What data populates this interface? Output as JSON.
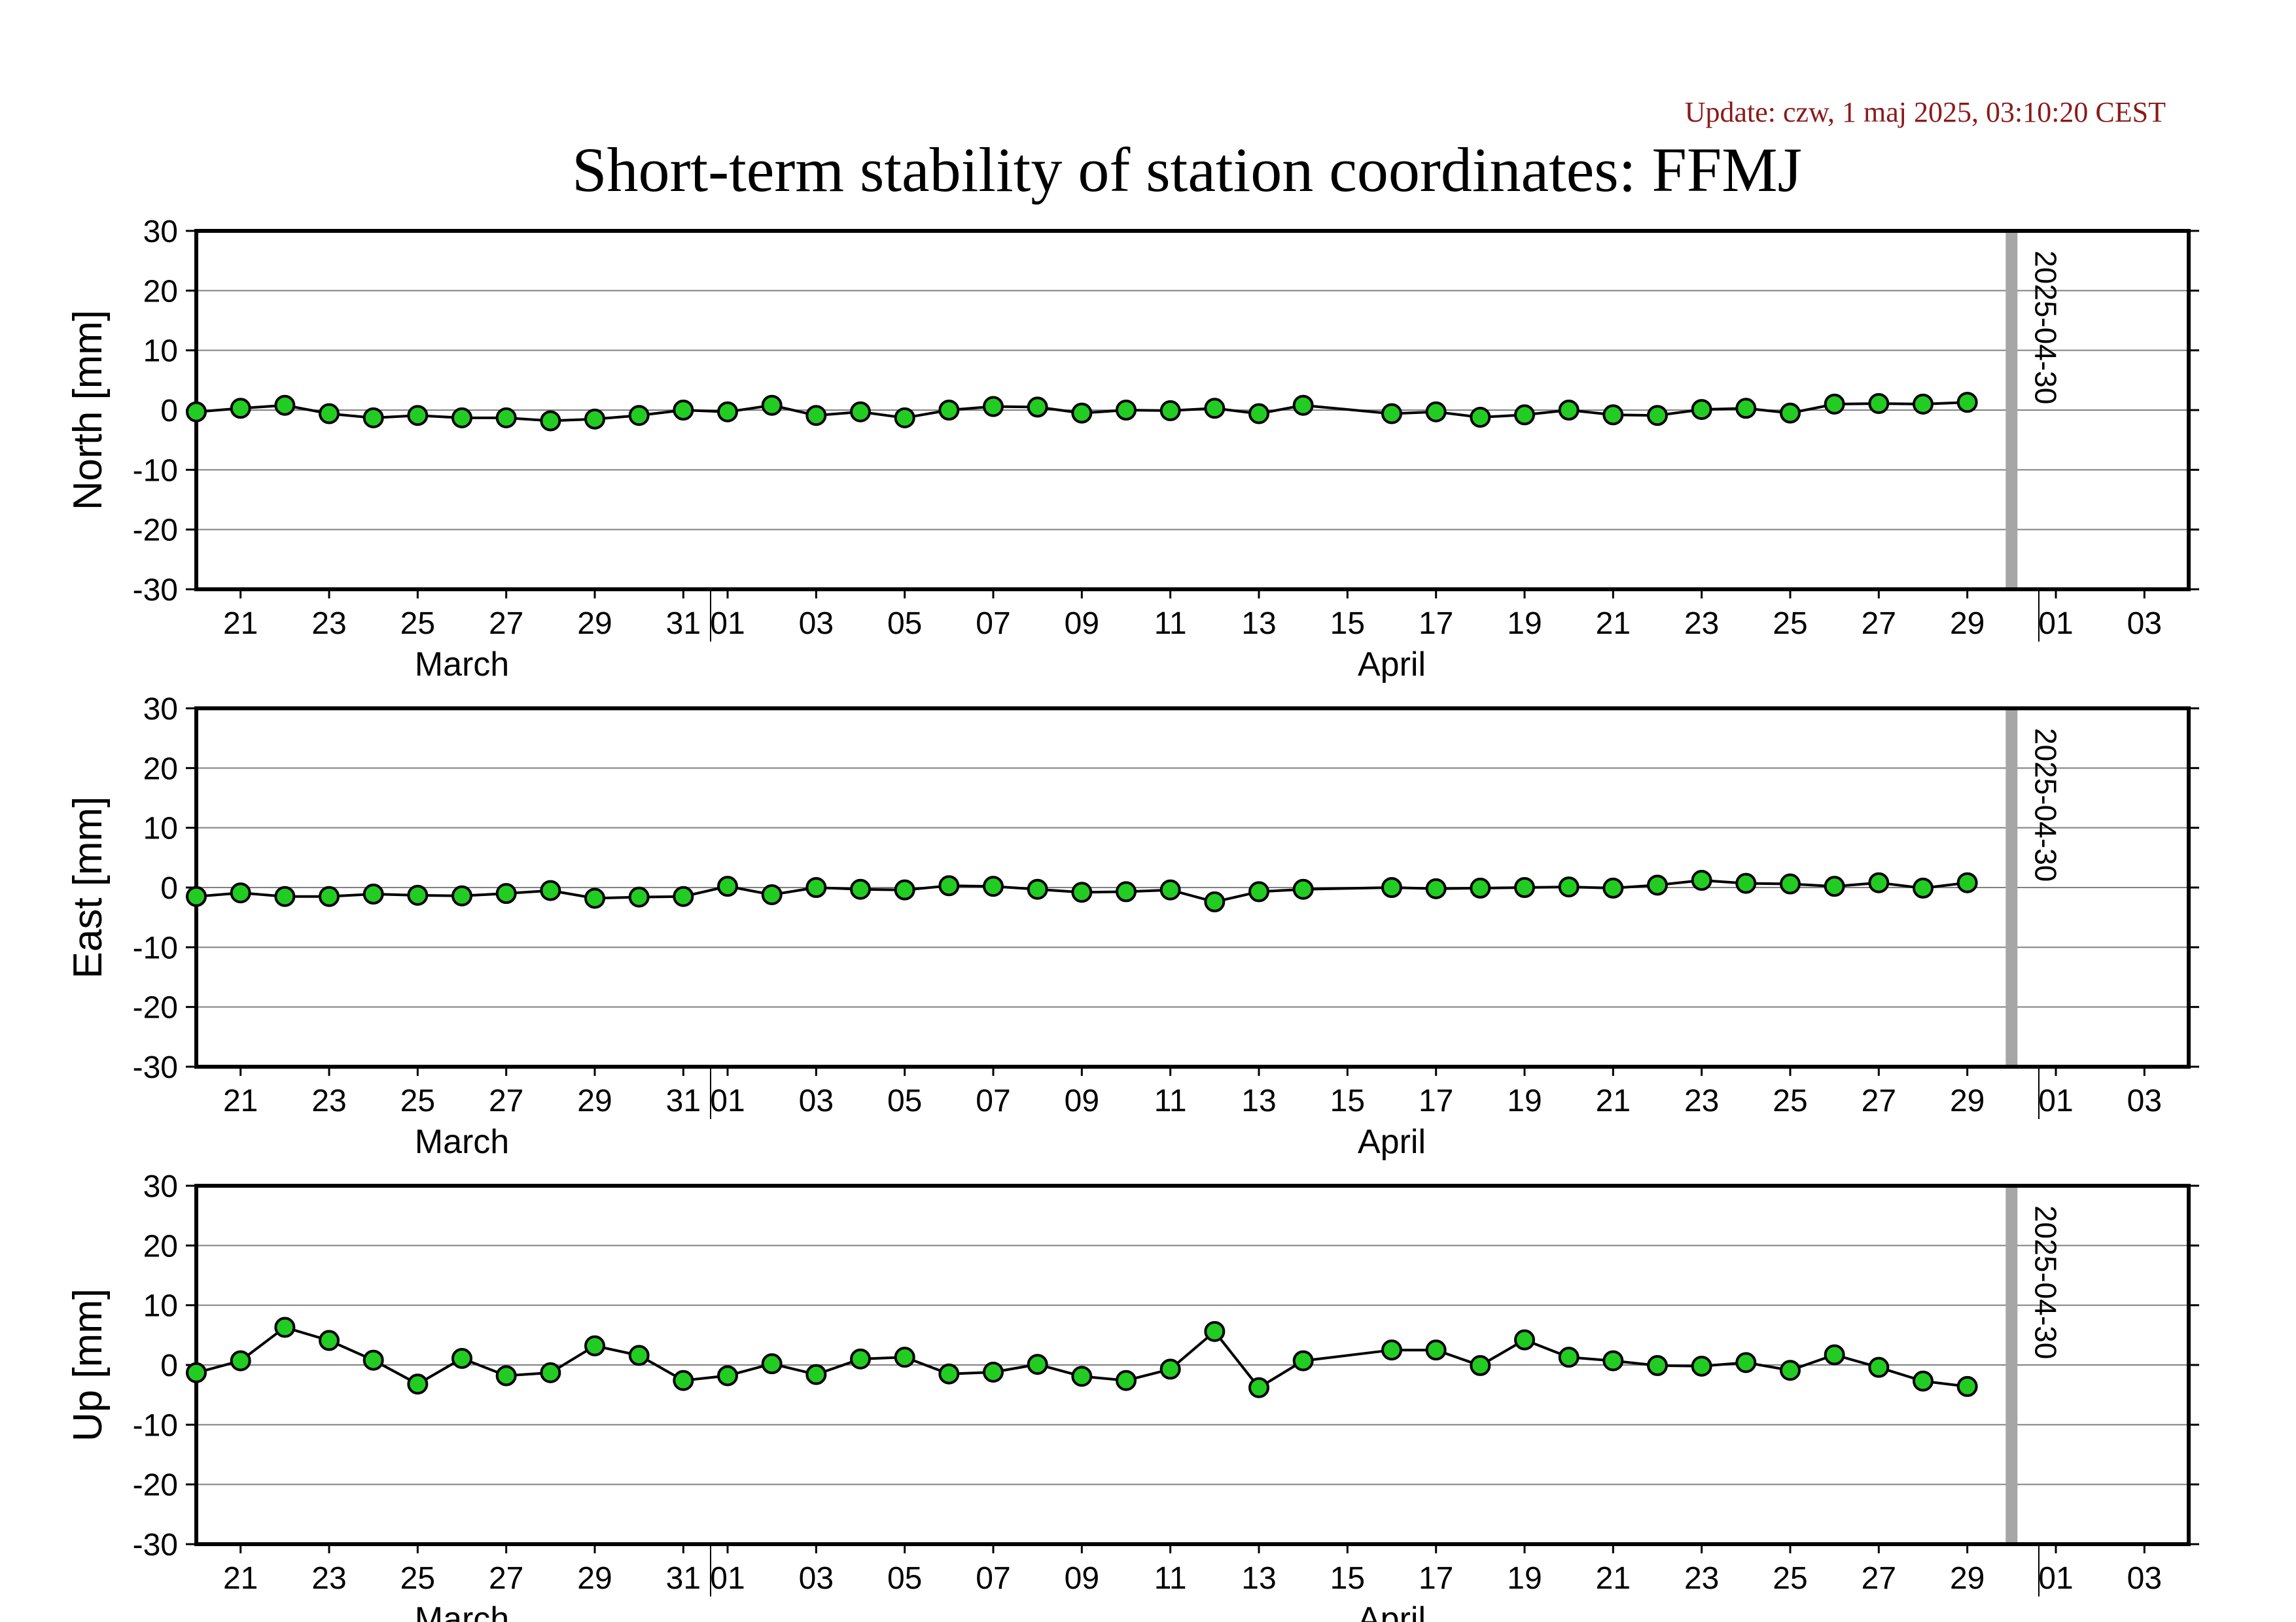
{
  "header": {
    "update": "Update: czw, 1 maj 2025, 03:10:20 CEST",
    "title": "Short-term stability of station coordinates: FFMJ"
  },
  "colors": {
    "update_text": "#8b1a1a",
    "point_fill": "#22cc22",
    "grid": "#808080",
    "marker_band": "#a6a6a6"
  },
  "chart_data": [
    {
      "type": "line",
      "ylabel": "North [mm]",
      "ylim": [
        -30,
        30
      ],
      "yticks": [
        30,
        20,
        10,
        0,
        -10,
        -20,
        -30
      ],
      "marker_label": "2025-04-30",
      "grid": true,
      "x": [
        "2025-03-20",
        "2025-03-21",
        "2025-03-22",
        "2025-03-23",
        "2025-03-24",
        "2025-03-25",
        "2025-03-26",
        "2025-03-27",
        "2025-03-28",
        "2025-03-29",
        "2025-03-30",
        "2025-03-31",
        "2025-04-01",
        "2025-04-02",
        "2025-04-03",
        "2025-04-04",
        "2025-04-05",
        "2025-04-06",
        "2025-04-07",
        "2025-04-08",
        "2025-04-09",
        "2025-04-10",
        "2025-04-11",
        "2025-04-12",
        "2025-04-13",
        "2025-04-14",
        "2025-04-16",
        "2025-04-17",
        "2025-04-18",
        "2025-04-19",
        "2025-04-20",
        "2025-04-21",
        "2025-04-22",
        "2025-04-23",
        "2025-04-24",
        "2025-04-25",
        "2025-04-26",
        "2025-04-27",
        "2025-04-28",
        "2025-04-29"
      ],
      "values": [
        -0.3,
        0.3,
        0.8,
        -0.6,
        -1.3,
        -0.9,
        -1.3,
        -1.3,
        -1.8,
        -1.5,
        -0.9,
        0.0,
        -0.3,
        0.8,
        -0.9,
        -0.3,
        -1.3,
        0.0,
        0.6,
        0.5,
        -0.5,
        0.0,
        -0.1,
        0.3,
        -0.6,
        0.8,
        -0.6,
        -0.3,
        -1.2,
        -0.8,
        0.0,
        -0.8,
        -0.9,
        0.1,
        0.3,
        -0.5,
        1.0,
        1.1,
        1.0,
        1.3
      ]
    },
    {
      "type": "line",
      "ylabel": "East [mm]",
      "ylim": [
        -30,
        30
      ],
      "yticks": [
        30,
        20,
        10,
        0,
        -10,
        -20,
        -30
      ],
      "marker_label": "2025-04-30",
      "grid": true,
      "x": [
        "2025-03-20",
        "2025-03-21",
        "2025-03-22",
        "2025-03-23",
        "2025-03-24",
        "2025-03-25",
        "2025-03-26",
        "2025-03-27",
        "2025-03-28",
        "2025-03-29",
        "2025-03-30",
        "2025-03-31",
        "2025-04-01",
        "2025-04-02",
        "2025-04-03",
        "2025-04-04",
        "2025-04-05",
        "2025-04-06",
        "2025-04-07",
        "2025-04-08",
        "2025-04-09",
        "2025-04-10",
        "2025-04-11",
        "2025-04-12",
        "2025-04-13",
        "2025-04-14",
        "2025-04-16",
        "2025-04-17",
        "2025-04-18",
        "2025-04-19",
        "2025-04-20",
        "2025-04-21",
        "2025-04-22",
        "2025-04-23",
        "2025-04-24",
        "2025-04-25",
        "2025-04-26",
        "2025-04-27",
        "2025-04-28",
        "2025-04-29"
      ],
      "values": [
        -1.5,
        -0.9,
        -1.5,
        -1.5,
        -1.1,
        -1.3,
        -1.4,
        -1.0,
        -0.5,
        -1.8,
        -1.6,
        -1.5,
        0.2,
        -1.2,
        0.0,
        -0.3,
        -0.4,
        0.3,
        0.2,
        -0.3,
        -0.8,
        -0.7,
        -0.4,
        -2.4,
        -0.7,
        -0.3,
        0.0,
        -0.2,
        -0.1,
        0.0,
        0.1,
        -0.1,
        0.4,
        1.2,
        0.7,
        0.6,
        0.2,
        0.8,
        -0.1,
        0.8
      ]
    },
    {
      "type": "line",
      "ylabel": "Up [mm]",
      "ylim": [
        -30,
        30
      ],
      "yticks": [
        30,
        20,
        10,
        0,
        -10,
        -20,
        -30
      ],
      "marker_label": "2025-04-30",
      "grid": true,
      "x": [
        "2025-03-20",
        "2025-03-21",
        "2025-03-22",
        "2025-03-23",
        "2025-03-24",
        "2025-03-25",
        "2025-03-26",
        "2025-03-27",
        "2025-03-28",
        "2025-03-29",
        "2025-03-30",
        "2025-03-31",
        "2025-04-01",
        "2025-04-02",
        "2025-04-03",
        "2025-04-04",
        "2025-04-05",
        "2025-04-06",
        "2025-04-07",
        "2025-04-08",
        "2025-04-09",
        "2025-04-10",
        "2025-04-11",
        "2025-04-12",
        "2025-04-13",
        "2025-04-14",
        "2025-04-16",
        "2025-04-17",
        "2025-04-18",
        "2025-04-19",
        "2025-04-20",
        "2025-04-21",
        "2025-04-22",
        "2025-04-23",
        "2025-04-24",
        "2025-04-25",
        "2025-04-26",
        "2025-04-27",
        "2025-04-28",
        "2025-04-29"
      ],
      "values": [
        -1.3,
        0.7,
        6.3,
        4.1,
        0.8,
        -3.2,
        1.1,
        -1.8,
        -1.3,
        3.2,
        1.6,
        -2.6,
        -1.8,
        0.2,
        -1.6,
        1.0,
        1.3,
        -1.5,
        -1.2,
        0.1,
        -1.9,
        -2.6,
        -0.7,
        5.6,
        -3.8,
        0.7,
        2.5,
        2.5,
        -0.1,
        4.2,
        1.3,
        0.7,
        -0.1,
        -0.2,
        0.4,
        -0.9,
        1.7,
        -0.4,
        -2.7,
        -3.6
      ]
    }
  ],
  "x_axis": {
    "ticks": [
      {
        "date": "2025-03-21",
        "label": "21"
      },
      {
        "date": "2025-03-23",
        "label": "23"
      },
      {
        "date": "2025-03-25",
        "label": "25"
      },
      {
        "date": "2025-03-27",
        "label": "27"
      },
      {
        "date": "2025-03-29",
        "label": "29"
      },
      {
        "date": "2025-03-31",
        "label": "31"
      },
      {
        "date": "2025-04-01",
        "label": "01"
      },
      {
        "date": "2025-04-03",
        "label": "03"
      },
      {
        "date": "2025-04-05",
        "label": "05"
      },
      {
        "date": "2025-04-07",
        "label": "07"
      },
      {
        "date": "2025-04-09",
        "label": "09"
      },
      {
        "date": "2025-04-11",
        "label": "11"
      },
      {
        "date": "2025-04-13",
        "label": "13"
      },
      {
        "date": "2025-04-15",
        "label": "15"
      },
      {
        "date": "2025-04-17",
        "label": "17"
      },
      {
        "date": "2025-04-19",
        "label": "19"
      },
      {
        "date": "2025-04-21",
        "label": "21"
      },
      {
        "date": "2025-04-23",
        "label": "23"
      },
      {
        "date": "2025-04-25",
        "label": "25"
      },
      {
        "date": "2025-04-27",
        "label": "27"
      },
      {
        "date": "2025-04-29",
        "label": "29"
      },
      {
        "date": "2025-05-01",
        "label": "01"
      },
      {
        "date": "2025-05-03",
        "label": "03"
      }
    ],
    "months": [
      {
        "label": "March",
        "center_date": "2025-03-26"
      },
      {
        "label": "April",
        "center_date": "2025-04-16"
      }
    ],
    "month_boundaries": [
      "2025-04-01",
      "2025-05-01"
    ],
    "start": "2025-03-20",
    "end": "2025-05-04",
    "marker_date": "2025-04-30"
  }
}
